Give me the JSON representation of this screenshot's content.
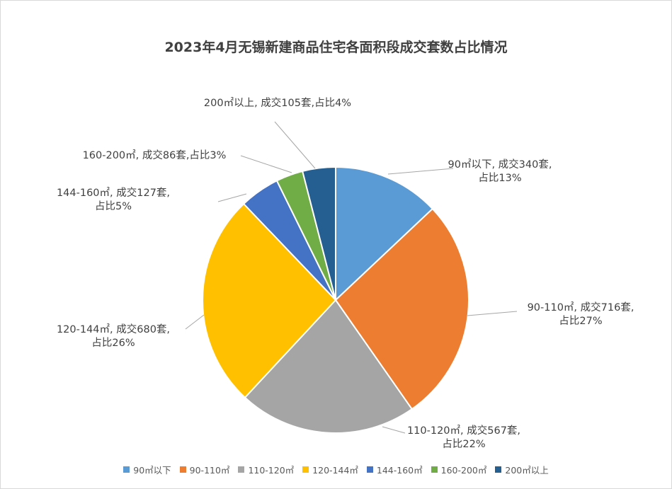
{
  "chart_data": {
    "type": "pie",
    "title": "2023年4月无锡新建商品住宅各面积段成交套数占比情况",
    "start_angle_deg": 0,
    "direction": "clockwise",
    "legend_position": "bottom",
    "slices": [
      {
        "name": "90㎡以下",
        "value": 340,
        "percent": 13,
        "color": "#5b9bd5",
        "label": [
          "90㎡以下, 成交340套,",
          "占比13%"
        ]
      },
      {
        "name": "90-110㎡",
        "value": 716,
        "percent": 27,
        "color": "#ed7d31",
        "label": [
          "90-110㎡, 成交716套,",
          "占比27%"
        ]
      },
      {
        "name": "110-120㎡",
        "value": 567,
        "percent": 22,
        "color": "#a5a5a5",
        "label": [
          "110-120㎡, 成交567套,",
          "占比22%"
        ]
      },
      {
        "name": "120-144㎡",
        "value": 680,
        "percent": 26,
        "color": "#ffc000",
        "label": [
          "120-144㎡, 成交680套,",
          "占比26%"
        ]
      },
      {
        "name": "144-160㎡",
        "value": 127,
        "percent": 5,
        "color": "#4472c4",
        "label": [
          "144-160㎡, 成交127套,",
          "占比5%"
        ]
      },
      {
        "name": "160-200㎡",
        "value": 86,
        "percent": 3,
        "color": "#70ad47",
        "label": [
          "160-200㎡, 成交86套,占比3%"
        ]
      },
      {
        "name": "200㎡以上",
        "value": 105,
        "percent": 4,
        "color": "#255e91",
        "label": [
          "200㎡以上, 成交105套,占比4%"
        ]
      }
    ]
  }
}
